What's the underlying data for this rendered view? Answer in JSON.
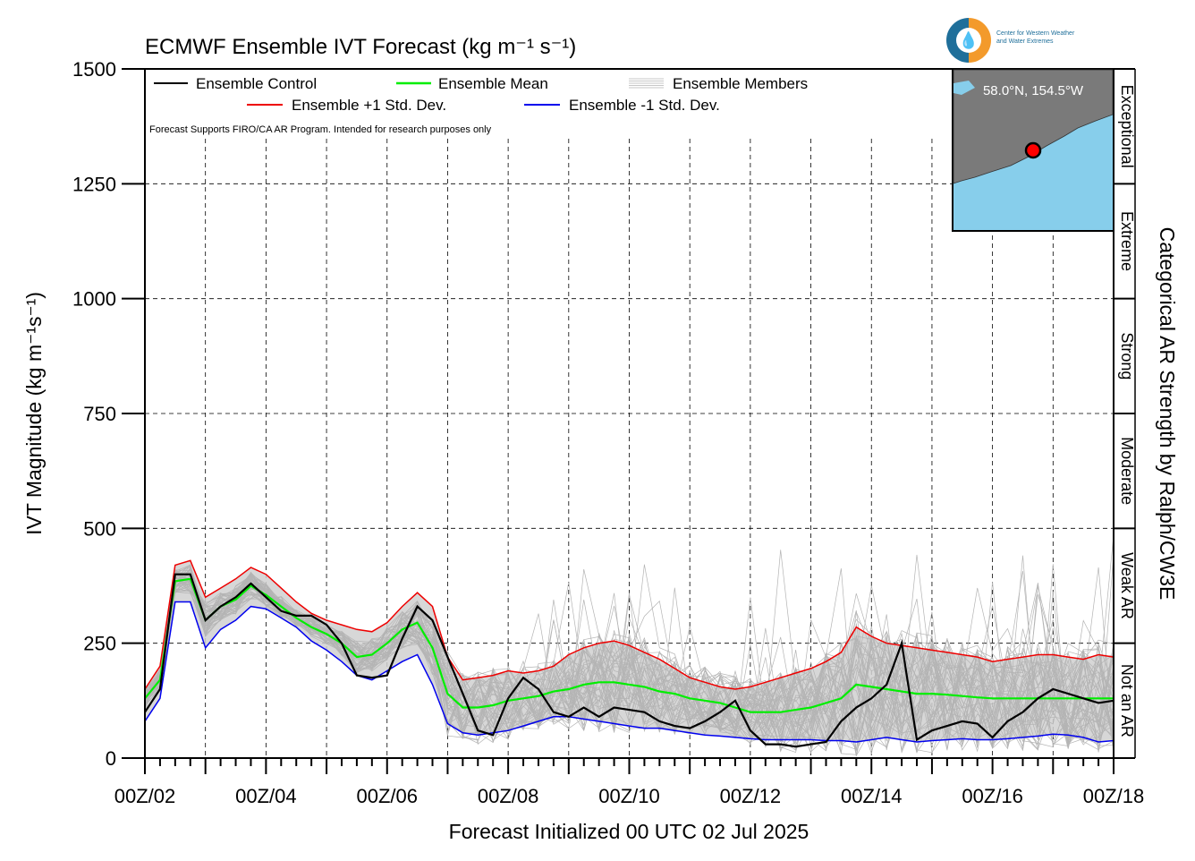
{
  "title": "ECMWF Ensemble IVT Forecast (kg m⁻¹ s⁻¹)",
  "ylabel": "IVT Magnitude (kg m⁻¹s⁻¹)",
  "xlabel": "Forecast Initialized 00 UTC 02 Jul 2025",
  "right_label": "Categorical AR Strength by Ralph/CW3E",
  "disclaimer": "Forecast Supports FIRO/CA AR Program. Intended for research purposes only",
  "logo_text_1": "Center for Western Weather",
  "logo_text_2": "and Water Extremes",
  "location": "58.0°N, 154.5°W",
  "legend": {
    "control": "Ensemble Control",
    "mean": "Ensemble Mean",
    "members": "Ensemble Members",
    "plus_sd": "Ensemble +1 Std. Dev.",
    "minus_sd": "Ensemble -1 Std. Dev."
  },
  "categories": [
    "Not an AR",
    "Weak AR",
    "Moderate",
    "Strong",
    "Extreme",
    "Exceptional"
  ],
  "colors": {
    "control": "#000000",
    "mean": "#00ee00",
    "plus_sd": "#ee0000",
    "minus_sd": "#0000ee",
    "members": "#b4b4b4",
    "spread": "#d0d0d0",
    "map_land": "#7a7a7a",
    "map_sea": "#87ceeb",
    "marker": "#ff0000"
  },
  "chart_data": {
    "type": "line",
    "title": "ECMWF Ensemble IVT Forecast (kg m⁻¹ s⁻¹)",
    "xlabel": "Forecast Initialized 00 UTC 02 Jul 2025",
    "ylabel": "IVT Magnitude (kg m⁻¹s⁻¹)",
    "x_tick_labels": [
      "00Z/02",
      "00Z/04",
      "00Z/06",
      "00Z/08",
      "00Z/10",
      "00Z/12",
      "00Z/14",
      "00Z/16",
      "00Z/18"
    ],
    "xlim_hours": [
      0,
      384
    ],
    "ylim": [
      0,
      1500
    ],
    "y_ticks": [
      0,
      250,
      500,
      750,
      1000,
      1250,
      1500
    ],
    "grid": true,
    "x_step_hours": 6,
    "series": [
      {
        "name": "Ensemble Control",
        "values": [
          100,
          150,
          400,
          400,
          300,
          330,
          350,
          380,
          350,
          320,
          310,
          310,
          290,
          250,
          180,
          175,
          180,
          260,
          330,
          300,
          220,
          140,
          60,
          50,
          130,
          175,
          150,
          100,
          90,
          110,
          90,
          110,
          105,
          100,
          80,
          70,
          65,
          80,
          100,
          125,
          60,
          30,
          30,
          25,
          30,
          35,
          80,
          110,
          130,
          160,
          250,
          40,
          60,
          70,
          80,
          75,
          45,
          80,
          100,
          130,
          150,
          140,
          130,
          120,
          125
        ]
      },
      {
        "name": "Ensemble Mean",
        "values": [
          130,
          170,
          385,
          390,
          300,
          330,
          345,
          375,
          355,
          330,
          305,
          285,
          270,
          250,
          220,
          225,
          250,
          280,
          295,
          240,
          140,
          110,
          110,
          115,
          125,
          130,
          135,
          145,
          150,
          160,
          165,
          165,
          160,
          155,
          145,
          140,
          130,
          125,
          120,
          110,
          100,
          100,
          100,
          105,
          110,
          120,
          130,
          160,
          155,
          150,
          145,
          140,
          140,
          138,
          135,
          132,
          130,
          130,
          130,
          130,
          130,
          130,
          130,
          130,
          130
        ]
      },
      {
        "name": "Ensemble +1 Std. Dev.",
        "values": [
          150,
          200,
          420,
          430,
          350,
          370,
          390,
          415,
          400,
          370,
          340,
          315,
          300,
          290,
          280,
          275,
          295,
          330,
          360,
          330,
          220,
          170,
          175,
          180,
          190,
          185,
          190,
          200,
          225,
          240,
          250,
          255,
          245,
          230,
          215,
          195,
          175,
          165,
          155,
          150,
          155,
          165,
          175,
          185,
          195,
          210,
          230,
          285,
          265,
          250,
          245,
          240,
          235,
          230,
          225,
          220,
          210,
          215,
          220,
          225,
          225,
          220,
          215,
          225,
          220
        ]
      },
      {
        "name": "Ensemble -1 Std. Dev.",
        "values": [
          80,
          130,
          340,
          340,
          240,
          280,
          300,
          330,
          325,
          305,
          285,
          255,
          235,
          210,
          180,
          170,
          190,
          210,
          225,
          160,
          75,
          55,
          50,
          55,
          60,
          70,
          80,
          90,
          90,
          85,
          80,
          75,
          70,
          65,
          65,
          60,
          55,
          50,
          48,
          45,
          42,
          40,
          40,
          40,
          40,
          38,
          38,
          35,
          40,
          45,
          40,
          35,
          38,
          40,
          42,
          40,
          40,
          42,
          45,
          48,
          52,
          50,
          45,
          35,
          38
        ]
      }
    ],
    "members_shown": 50,
    "inset_map": {
      "lat": 58.0,
      "lon": -154.5,
      "label": "58.0°N, 154.5°W"
    },
    "right_axis": {
      "label": "Categorical AR Strength by Ralph/CW3E",
      "bands": [
        {
          "name": "Not an AR",
          "from": 0,
          "to": 250
        },
        {
          "name": "Weak AR",
          "from": 250,
          "to": 500
        },
        {
          "name": "Moderate",
          "from": 500,
          "to": 750
        },
        {
          "name": "Strong",
          "from": 750,
          "to": 1000
        },
        {
          "name": "Extreme",
          "from": 1000,
          "to": 1250
        },
        {
          "name": "Exceptional",
          "from": 1250,
          "to": 1500
        }
      ]
    }
  }
}
